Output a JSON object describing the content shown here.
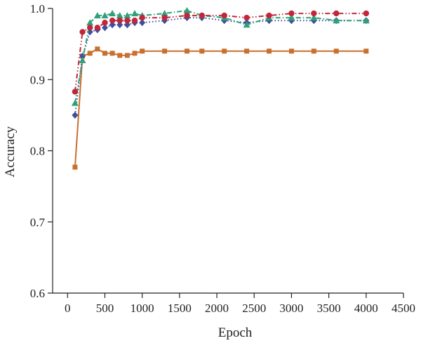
{
  "chart_data": {
    "type": "line",
    "title": "",
    "xlabel": "Epoch",
    "ylabel": "Accuracy",
    "xlim": [
      -200,
      4500
    ],
    "ylim": [
      0.6,
      1.0
    ],
    "xticks": [
      0,
      500,
      1000,
      1500,
      2000,
      2500,
      3000,
      3500,
      4000,
      4500
    ],
    "yticks": [
      0.6,
      0.7,
      0.8,
      0.9,
      1.0
    ],
    "xtick_labels": [
      "0",
      "500",
      "1000",
      "1500",
      "2000",
      "2500",
      "3000",
      "3500",
      "4000",
      "4500"
    ],
    "ytick_labels": [
      "0.6",
      "0.7",
      "0.8",
      "0.9",
      "1.0"
    ],
    "grid": false,
    "legend": false,
    "series": [
      {
        "color": "#c8702f",
        "marker": "square",
        "dash": "solid",
        "points": [
          [
            100,
            0.777
          ],
          [
            200,
            0.933
          ],
          [
            300,
            0.937
          ],
          [
            400,
            0.943
          ],
          [
            500,
            0.937
          ],
          [
            600,
            0.937
          ],
          [
            700,
            0.934
          ],
          [
            800,
            0.934
          ],
          [
            900,
            0.937
          ],
          [
            1000,
            0.94
          ],
          [
            1300,
            0.94
          ],
          [
            1600,
            0.94
          ],
          [
            1800,
            0.94
          ],
          [
            2100,
            0.94
          ],
          [
            2400,
            0.94
          ],
          [
            2700,
            0.94
          ],
          [
            3000,
            0.94
          ],
          [
            3300,
            0.94
          ],
          [
            3600,
            0.94
          ],
          [
            4000,
            0.94
          ]
        ]
      },
      {
        "color": "#3f4fa0",
        "marker": "diamond",
        "dash": "dotted",
        "points": [
          [
            100,
            0.85
          ],
          [
            200,
            0.933
          ],
          [
            300,
            0.967
          ],
          [
            400,
            0.97
          ],
          [
            500,
            0.973
          ],
          [
            600,
            0.977
          ],
          [
            700,
            0.977
          ],
          [
            800,
            0.977
          ],
          [
            900,
            0.98
          ],
          [
            1000,
            0.98
          ],
          [
            1300,
            0.983
          ],
          [
            1600,
            0.987
          ],
          [
            1800,
            0.987
          ],
          [
            2100,
            0.983
          ],
          [
            2400,
            0.98
          ],
          [
            2700,
            0.983
          ],
          [
            3000,
            0.983
          ],
          [
            3300,
            0.983
          ],
          [
            3600,
            0.983
          ],
          [
            4000,
            0.983
          ]
        ]
      },
      {
        "color": "#2fa07a",
        "marker": "triangle",
        "dash": "dashdot",
        "points": [
          [
            100,
            0.867
          ],
          [
            200,
            0.927
          ],
          [
            300,
            0.98
          ],
          [
            400,
            0.99
          ],
          [
            500,
            0.99
          ],
          [
            600,
            0.993
          ],
          [
            700,
            0.99
          ],
          [
            800,
            0.99
          ],
          [
            900,
            0.993
          ],
          [
            1000,
            0.99
          ],
          [
            1300,
            0.993
          ],
          [
            1600,
            0.997
          ],
          [
            1800,
            0.99
          ],
          [
            2100,
            0.987
          ],
          [
            2400,
            0.977
          ],
          [
            2700,
            0.987
          ],
          [
            3000,
            0.987
          ],
          [
            3300,
            0.987
          ],
          [
            3600,
            0.983
          ],
          [
            4000,
            0.983
          ]
        ]
      },
      {
        "color": "#c0273a",
        "marker": "circle",
        "dash": "dashdotdot",
        "points": [
          [
            100,
            0.883
          ],
          [
            200,
            0.967
          ],
          [
            300,
            0.973
          ],
          [
            400,
            0.973
          ],
          [
            500,
            0.98
          ],
          [
            600,
            0.983
          ],
          [
            700,
            0.983
          ],
          [
            800,
            0.983
          ],
          [
            900,
            0.983
          ],
          [
            1000,
            0.987
          ],
          [
            1300,
            0.987
          ],
          [
            1600,
            0.99
          ],
          [
            1800,
            0.99
          ],
          [
            2100,
            0.99
          ],
          [
            2400,
            0.987
          ],
          [
            2700,
            0.99
          ],
          [
            3000,
            0.993
          ],
          [
            3300,
            0.993
          ],
          [
            3600,
            0.993
          ],
          [
            4000,
            0.993
          ]
        ]
      }
    ]
  }
}
